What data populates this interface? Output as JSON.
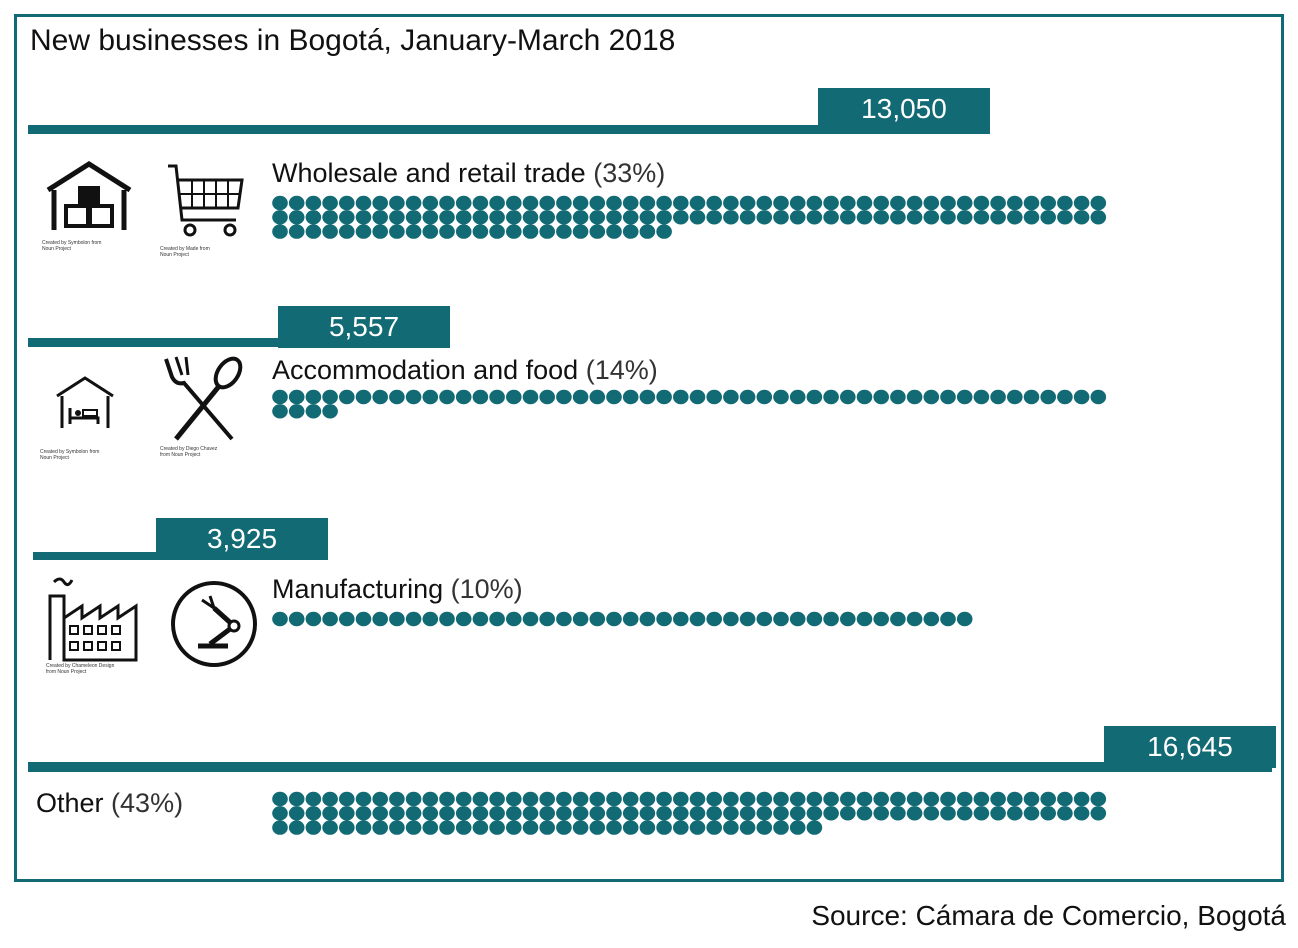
{
  "title": "New businesses in Bogotá, January-March 2018",
  "source": "Source: Cámara de Comercio, Bogotá",
  "colors": {
    "accent": "#126a74"
  },
  "categories": [
    {
      "label": "Wholesale and retail trade",
      "pct": "(33%)",
      "value_label": "13,050",
      "icons": [
        "warehouse-icon",
        "shopping-cart-icon"
      ],
      "credits": [
        "Created by Symbolon from Noun Project",
        "Created by Made from Noun Project"
      ]
    },
    {
      "label": "Accommodation and food",
      "pct": "(14%)",
      "value_label": "5,557",
      "icons": [
        "hotel-bed-icon",
        "fork-spoon-icon"
      ],
      "credits": [
        "Created by Symbolon from Noun Project",
        "Created by Diego Chavez from Noun Project"
      ]
    },
    {
      "label": "Manufacturing",
      "pct": "(10%)",
      "value_label": "3,925",
      "icons": [
        "factory-icon",
        "robot-arm-icon"
      ],
      "credits": [
        "Created by Chameleon Design from Noun Project"
      ]
    },
    {
      "label": "Other",
      "pct": "(43%)",
      "value_label": "16,645"
    }
  ],
  "chart_data": {
    "type": "bar",
    "title": "New businesses in Bogotá, January-March 2018",
    "categories": [
      "Wholesale and retail trade",
      "Accommodation and food",
      "Manufacturing",
      "Other"
    ],
    "values": [
      13050,
      5557,
      3925,
      16645
    ],
    "percentages": [
      33,
      14,
      10,
      43
    ],
    "dot_counts": [
      124,
      54,
      42,
      133
    ]
  }
}
